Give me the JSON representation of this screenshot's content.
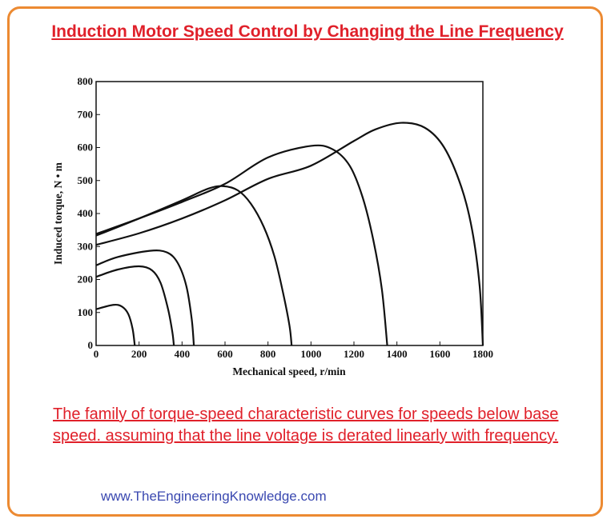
{
  "title": "Induction Motor Speed Control by Changing the Line Frequency",
  "caption": "The family of torque-speed characteristic curves for speeds below base speed. assuming that the line voltage is derated linearly with frequency.",
  "website": "www.TheEngineeringKnowledge.com",
  "colors": {
    "title": "#e0202a",
    "border": "#ec8a32",
    "link": "#3a48b0",
    "curve": "#111111"
  },
  "chart_data": {
    "type": "line",
    "xlabel": "Mechanical speed, r/min",
    "ylabel": "Induced torque, N • m",
    "xlim": [
      0,
      1800
    ],
    "ylim": [
      0,
      800
    ],
    "xticks": [
      "0",
      "200",
      "400",
      "600",
      "800",
      "1000",
      "1200",
      "1400",
      "1600",
      "1800"
    ],
    "yticks": [
      "0",
      "100",
      "200",
      "300",
      "400",
      "500",
      "600",
      "700",
      "800"
    ],
    "grid": false,
    "series": [
      {
        "points": [
          [
            0,
            305
          ],
          [
            200,
            340
          ],
          [
            400,
            385
          ],
          [
            600,
            440
          ],
          [
            800,
            505
          ],
          [
            1000,
            545
          ],
          [
            1200,
            620
          ],
          [
            1300,
            655
          ],
          [
            1420,
            675
          ],
          [
            1530,
            660
          ],
          [
            1620,
            600
          ],
          [
            1700,
            480
          ],
          [
            1750,
            350
          ],
          [
            1785,
            180
          ],
          [
            1800,
            0
          ]
        ]
      },
      {
        "points": [
          [
            0,
            338
          ],
          [
            200,
            385
          ],
          [
            400,
            435
          ],
          [
            600,
            490
          ],
          [
            800,
            570
          ],
          [
            1000,
            605
          ],
          [
            1100,
            595
          ],
          [
            1180,
            545
          ],
          [
            1240,
            450
          ],
          [
            1290,
            320
          ],
          [
            1330,
            170
          ],
          [
            1355,
            0
          ]
        ]
      },
      {
        "points": [
          [
            0,
            333
          ],
          [
            200,
            385
          ],
          [
            400,
            440
          ],
          [
            520,
            475
          ],
          [
            590,
            483
          ],
          [
            660,
            470
          ],
          [
            720,
            430
          ],
          [
            780,
            360
          ],
          [
            830,
            270
          ],
          [
            870,
            160
          ],
          [
            900,
            60
          ],
          [
            910,
            0
          ]
        ]
      },
      {
        "points": [
          [
            0,
            243
          ],
          [
            100,
            268
          ],
          [
            250,
            287
          ],
          [
            330,
            282
          ],
          [
            380,
            250
          ],
          [
            420,
            180
          ],
          [
            445,
            80
          ],
          [
            455,
            0
          ]
        ]
      },
      {
        "points": [
          [
            0,
            208
          ],
          [
            100,
            230
          ],
          [
            200,
            240
          ],
          [
            260,
            228
          ],
          [
            300,
            190
          ],
          [
            335,
            110
          ],
          [
            355,
            40
          ],
          [
            362,
            0
          ]
        ]
      },
      {
        "points": [
          [
            0,
            110
          ],
          [
            80,
            123
          ],
          [
            120,
            118
          ],
          [
            150,
            95
          ],
          [
            170,
            50
          ],
          [
            180,
            0
          ]
        ]
      }
    ]
  }
}
